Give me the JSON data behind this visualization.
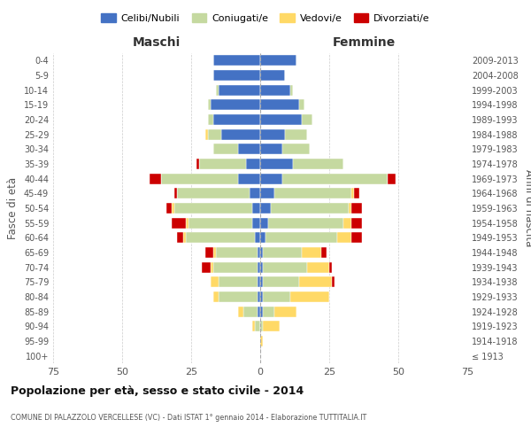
{
  "age_groups": [
    "100+",
    "95-99",
    "90-94",
    "85-89",
    "80-84",
    "75-79",
    "70-74",
    "65-69",
    "60-64",
    "55-59",
    "50-54",
    "45-49",
    "40-44",
    "35-39",
    "30-34",
    "25-29",
    "20-24",
    "15-19",
    "10-14",
    "5-9",
    "0-4"
  ],
  "birth_years": [
    "≤ 1913",
    "1914-1918",
    "1919-1923",
    "1924-1928",
    "1929-1933",
    "1934-1938",
    "1939-1943",
    "1944-1948",
    "1949-1953",
    "1954-1958",
    "1959-1963",
    "1964-1968",
    "1969-1973",
    "1974-1978",
    "1979-1983",
    "1984-1988",
    "1989-1993",
    "1994-1998",
    "1999-2003",
    "2004-2008",
    "2009-2013"
  ],
  "maschi": {
    "celibi": [
      0,
      0,
      0,
      1,
      1,
      1,
      1,
      1,
      2,
      3,
      3,
      4,
      8,
      5,
      8,
      14,
      17,
      18,
      15,
      17,
      17
    ],
    "coniugati": [
      0,
      0,
      2,
      5,
      14,
      14,
      16,
      15,
      25,
      23,
      28,
      26,
      28,
      17,
      9,
      5,
      2,
      1,
      1,
      0,
      0
    ],
    "vedovi": [
      0,
      0,
      1,
      2,
      2,
      3,
      1,
      1,
      1,
      1,
      1,
      0,
      0,
      0,
      0,
      1,
      0,
      0,
      0,
      0,
      0
    ],
    "divorziati": [
      0,
      0,
      0,
      0,
      0,
      0,
      3,
      3,
      2,
      5,
      2,
      1,
      4,
      1,
      0,
      0,
      0,
      0,
      0,
      0,
      0
    ]
  },
  "femmine": {
    "nubili": [
      0,
      0,
      0,
      1,
      1,
      1,
      1,
      1,
      2,
      3,
      4,
      5,
      8,
      12,
      8,
      9,
      15,
      14,
      11,
      9,
      13
    ],
    "coniugate": [
      0,
      0,
      1,
      4,
      10,
      13,
      16,
      14,
      26,
      27,
      28,
      28,
      38,
      18,
      10,
      8,
      4,
      2,
      1,
      0,
      0
    ],
    "vedove": [
      0,
      1,
      6,
      8,
      14,
      12,
      8,
      7,
      5,
      3,
      1,
      1,
      0,
      0,
      0,
      0,
      0,
      0,
      0,
      0,
      0
    ],
    "divorziate": [
      0,
      0,
      0,
      0,
      0,
      1,
      1,
      2,
      4,
      4,
      4,
      2,
      3,
      0,
      0,
      0,
      0,
      0,
      0,
      0,
      0
    ]
  },
  "colors": {
    "celibi_nubili": "#4472C4",
    "coniugati": "#C5D9A0",
    "vedovi": "#FFD966",
    "divorziati": "#CC0000"
  },
  "xlim": 75,
  "title": "Popolazione per età, sesso e stato civile - 2014",
  "subtitle": "COMUNE DI PALAZZOLO VERCELLESE (VC) - Dati ISTAT 1° gennaio 2014 - Elaborazione TUTTITALIA.IT",
  "ylabel": "Fasce di età",
  "ylabel_right": "Anni di nascita",
  "xlabel_left": "Maschi",
  "xlabel_right": "Femmine",
  "legend_labels": [
    "Celibi/Nubili",
    "Coniugati/e",
    "Vedovi/e",
    "Divorziati/e"
  ],
  "bg_color": "#ffffff",
  "grid_color": "#cccccc"
}
